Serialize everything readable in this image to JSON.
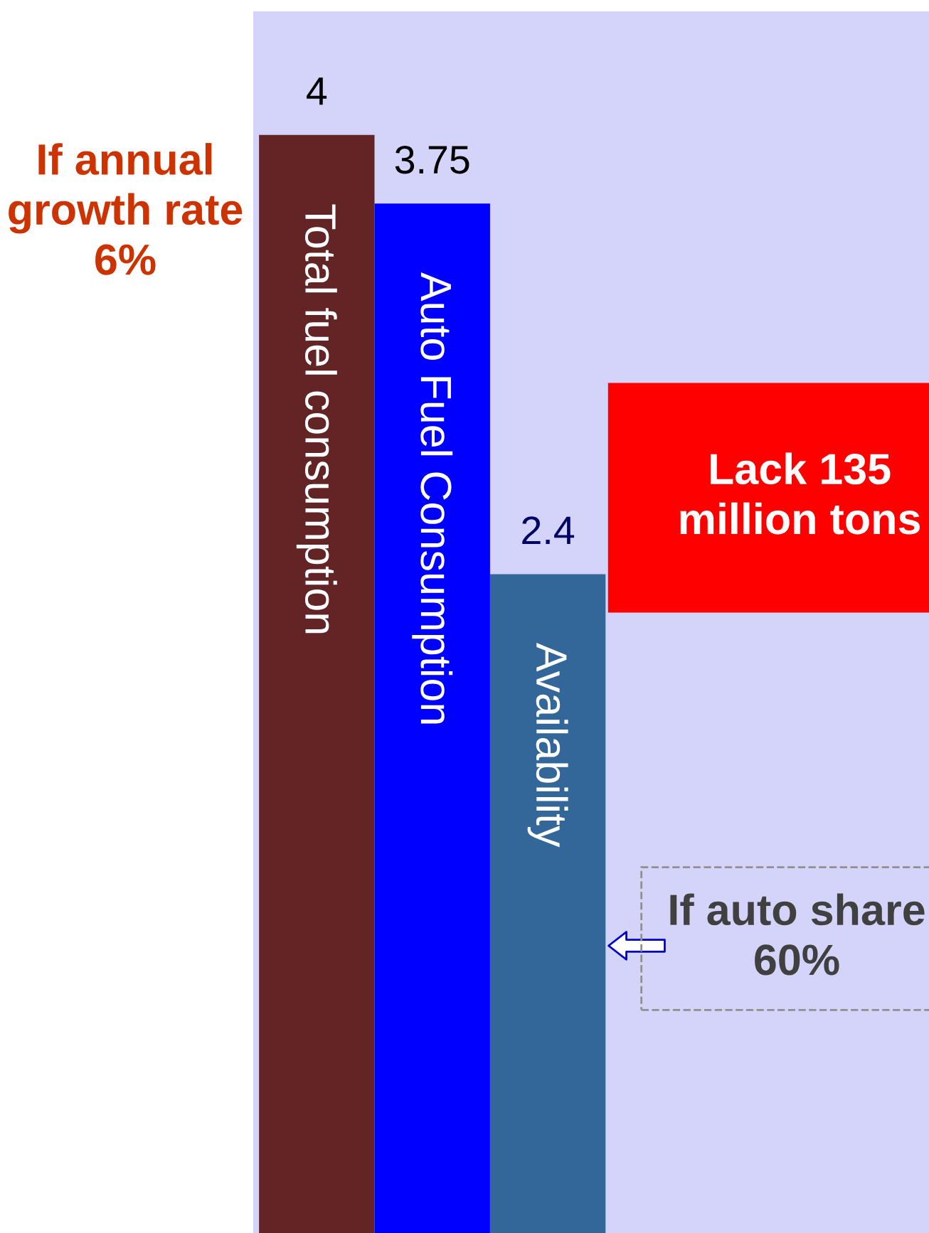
{
  "chart_data": {
    "type": "bar",
    "categories": [
      "Total fuel consumption",
      "Auto Fuel Consumption",
      "Availability"
    ],
    "values": [
      4,
      3.75,
      2.4
    ],
    "colors": [
      "#622424",
      "#0000ff",
      "#336699"
    ],
    "value_labels": [
      "4",
      "3.75",
      "2.4"
    ],
    "ylim": [
      0,
      4.45
    ],
    "annotations": [
      "If annual growth rate 6%",
      "Lack 135 million tons",
      "If auto share 60%"
    ]
  }
}
